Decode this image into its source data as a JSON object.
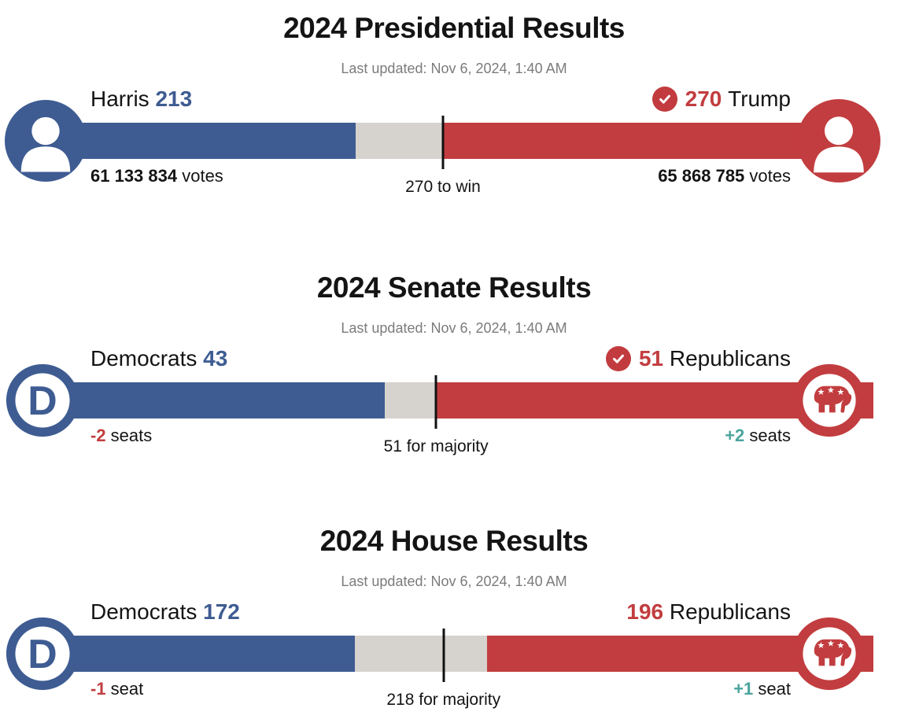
{
  "colors": {
    "democrat_blue": "#3e5c92",
    "republican_red": "#c23d3f",
    "track_gray": "#d6d2cd",
    "gain_teal": "#4aa49d",
    "loss_red": "#c23d3f",
    "title_black": "#141414",
    "updated_gray": "#7b7b7b",
    "check_circle_red": "#c23b3e"
  },
  "logos": {
    "democratic_letter": "D"
  },
  "chart_data": [
    {
      "type": "bar",
      "title": "2024 Presidential Results",
      "updated": "Last updated: Nov 6, 2024, 1:40 AM",
      "total": 538,
      "threshold": 270,
      "threshold_label": "270 to win",
      "winner": "Trump",
      "left": {
        "name": "Harris",
        "value": 213,
        "party": "democratic",
        "note_strong": "61 133 834",
        "note_rest": " votes"
      },
      "right": {
        "name": "Trump",
        "value": 270,
        "party": "republican",
        "note_strong": "65 868 785",
        "note_rest": " votes"
      }
    },
    {
      "type": "bar",
      "title": "2024 Senate Results",
      "updated": "Last updated: Nov 6, 2024, 1:40 AM",
      "total": 100,
      "threshold": 51,
      "threshold_label": "51 for majority",
      "winner": "Republicans",
      "left": {
        "name": "Democrats",
        "value": 43,
        "party": "democratic",
        "note_strong": "-2",
        "note_rest": " seats"
      },
      "right": {
        "name": "Republicans",
        "value": 51,
        "party": "republican",
        "note_strong": "+2",
        "note_rest": " seats"
      }
    },
    {
      "type": "bar",
      "title": "2024 House Results",
      "updated": "Last updated: Nov 6, 2024, 1:40 AM",
      "total": 435,
      "threshold": 218,
      "threshold_label": "218 for majority",
      "winner": null,
      "left": {
        "name": "Democrats",
        "value": 172,
        "party": "democratic",
        "note_strong": "-1",
        "note_rest": " seat"
      },
      "right": {
        "name": "Republicans",
        "value": 196,
        "party": "republican",
        "note_strong": "+1",
        "note_rest": " seat"
      }
    }
  ]
}
